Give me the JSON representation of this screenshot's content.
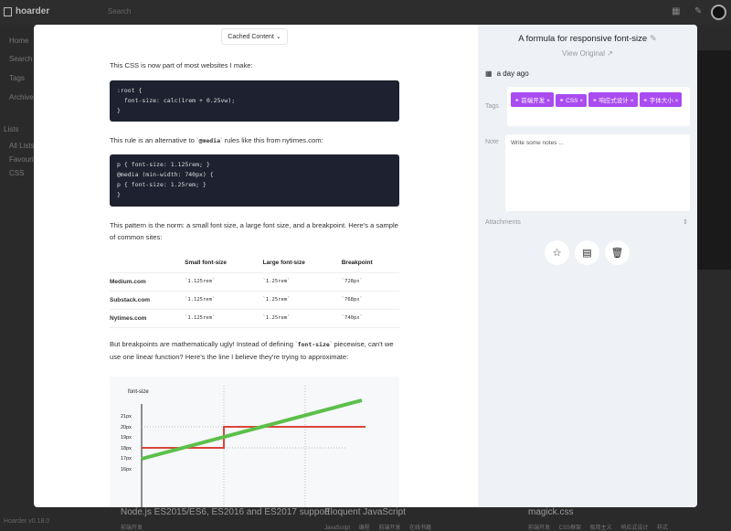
{
  "app": {
    "name": "hoarder",
    "search_placeholder": "Search",
    "version": "Hoarder v0.18.0"
  },
  "sidebar": {
    "items": [
      "Home",
      "Search",
      "Tags",
      "Archive"
    ],
    "lists_label": "Lists",
    "lists": [
      "All Lists",
      "Favourites",
      "CSS"
    ]
  },
  "background_cards": [
    {
      "title": "Node.js ES2015/ES6, ES2016 and ES2017 support",
      "tags": "前端开发"
    },
    {
      "title": "Eloquent JavaScript",
      "tags": "JavaScript 编程 前端开发 在线书籍"
    },
    {
      "title": "magick.css",
      "tags": "前端开发 CSS框架 极简主义 响应式设计 样式"
    }
  ],
  "content": {
    "view_select": "Cached Content",
    "p1": "This CSS is now part of most websites I make:",
    "code1": ":root {\n  font-size: calc(1rem + 0.25vw);\n}",
    "p2_pre": "This rule is an alternative to `",
    "p2_code": "@media",
    "p2_post": "` rules like this from nytimes.com:",
    "code2": "p { font-size: 1.125rem; }\n@media (min-width: 740px) {\np { font-size: 1.25rem; }\n}",
    "p3": "This pattern is the norm: a small font size, a large font size, and a breakpoint. Here's a sample of common sites:",
    "table": {
      "headers": [
        "",
        "Small font-size",
        "Large font-size",
        "Breakpoint"
      ],
      "rows": [
        [
          "Medium.com",
          "`1.125rem`",
          "`1.25rem`",
          "`728px`"
        ],
        [
          "Substack.com",
          "`1.125rem`",
          "`1.25rem`",
          "`768px`"
        ],
        [
          "Nytimes.com",
          "`1.125rem`",
          "`1.25rem`",
          "`740px`"
        ]
      ]
    },
    "p4_pre": "But breakpoints are mathematically ugly! Instead of defining `",
    "p4_code": "font-size",
    "p4_post": "` piecewise, can't we use one linear function? Here's the line I believe they're trying to approximate:",
    "chart": {
      "ylabel": "font-size",
      "yticks": [
        "21px",
        "20px",
        "19px",
        "18px",
        "17px",
        "16px"
      ],
      "colors": {
        "linear": "#5cc04a",
        "stepped": "#d9453b"
      }
    }
  },
  "panel": {
    "title": "A formula for responsive font-size",
    "view_original": "View Original",
    "date": "a day ago",
    "tags_label": "Tags",
    "tags": [
      "前端开发",
      "CSS",
      "响应式设计",
      "字体大小"
    ],
    "tag_color": "#a94bf0",
    "note_label": "Note",
    "note_placeholder": "Write some notes ...",
    "attachments_label": "Attachments"
  }
}
